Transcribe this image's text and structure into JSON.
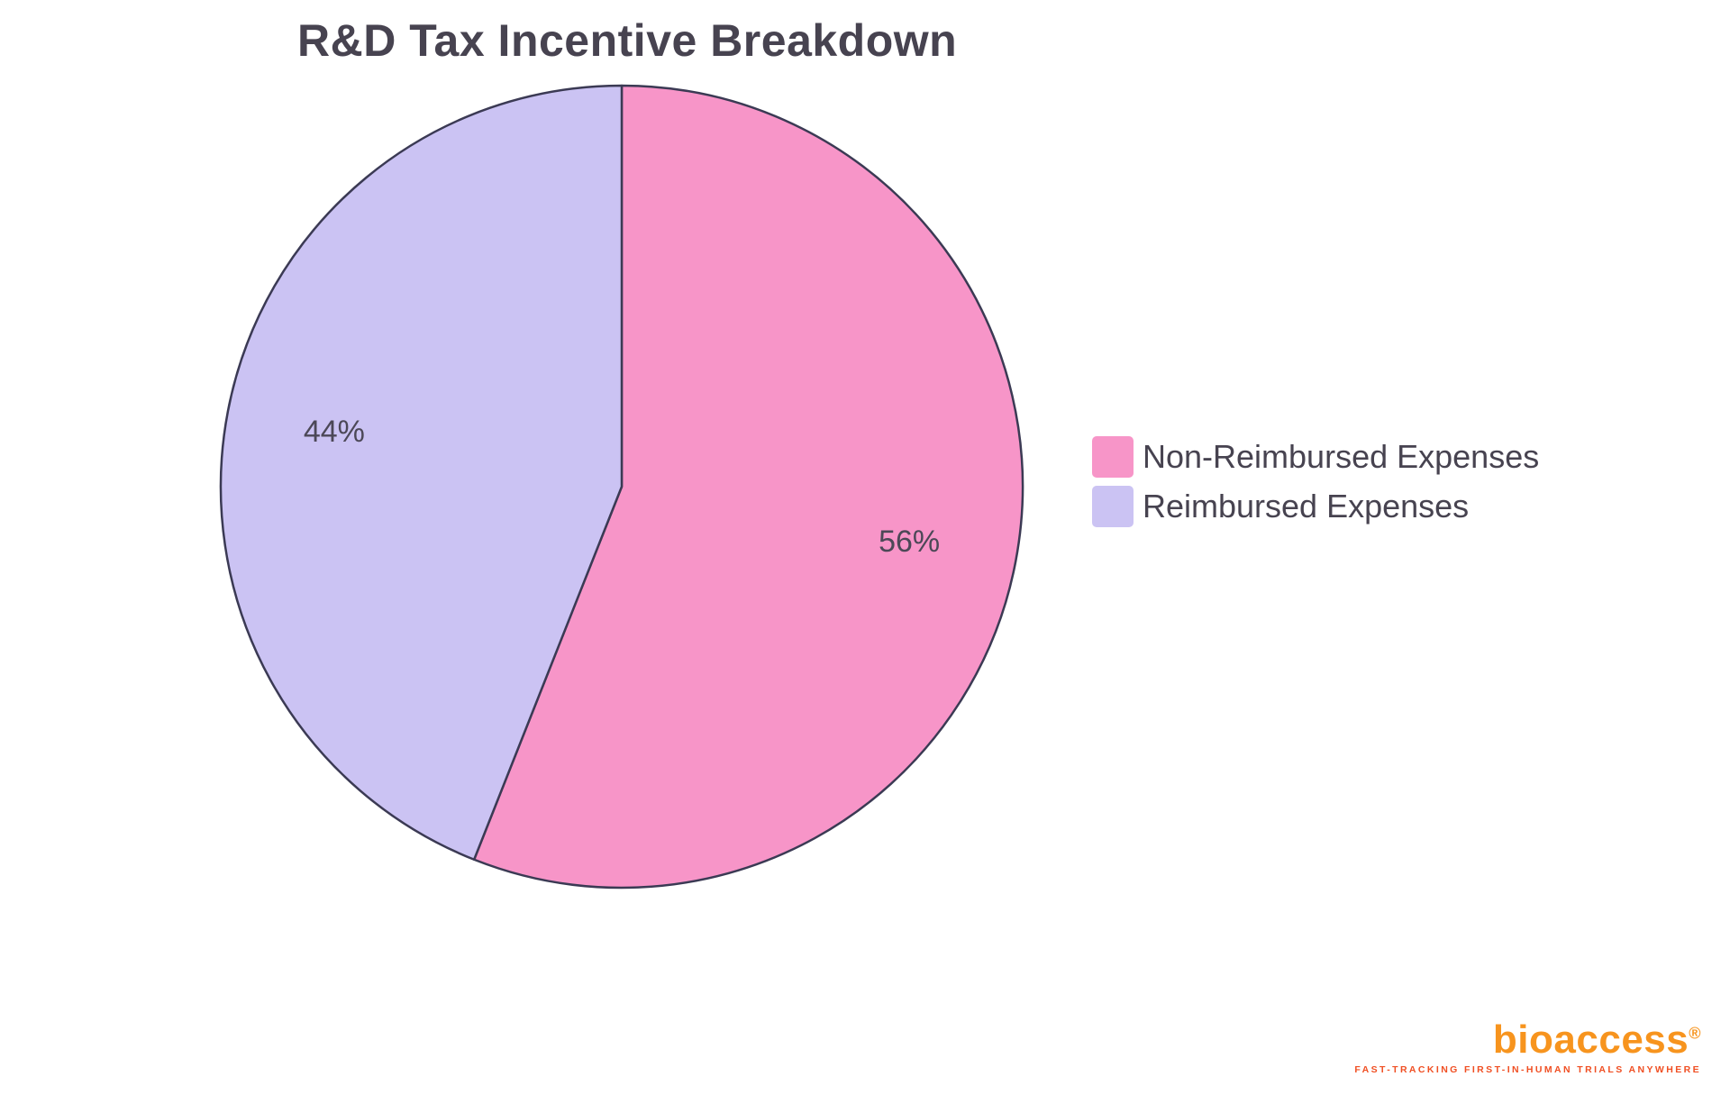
{
  "chart_data": {
    "type": "pie",
    "title": "R&D Tax Incentive Breakdown",
    "labels": [
      "Non-Reimbursed Expenses",
      "Reimbursed Expenses"
    ],
    "values": [
      56,
      44
    ],
    "slice_labels": [
      "56%",
      "44%"
    ],
    "colors": [
      "#F795C8",
      "#CBC3F3"
    ],
    "slice_border_color": "#3B3A54",
    "start_angle": "top",
    "direction": "clockwise",
    "legend_position": "right",
    "background": "#FFFFFF"
  },
  "brand": {
    "name": "bioaccess",
    "registered": "®",
    "tagline": "FAST-TRACKING FIRST-IN-HUMAN TRIALS ANYWHERE",
    "color": "#F7941E"
  }
}
